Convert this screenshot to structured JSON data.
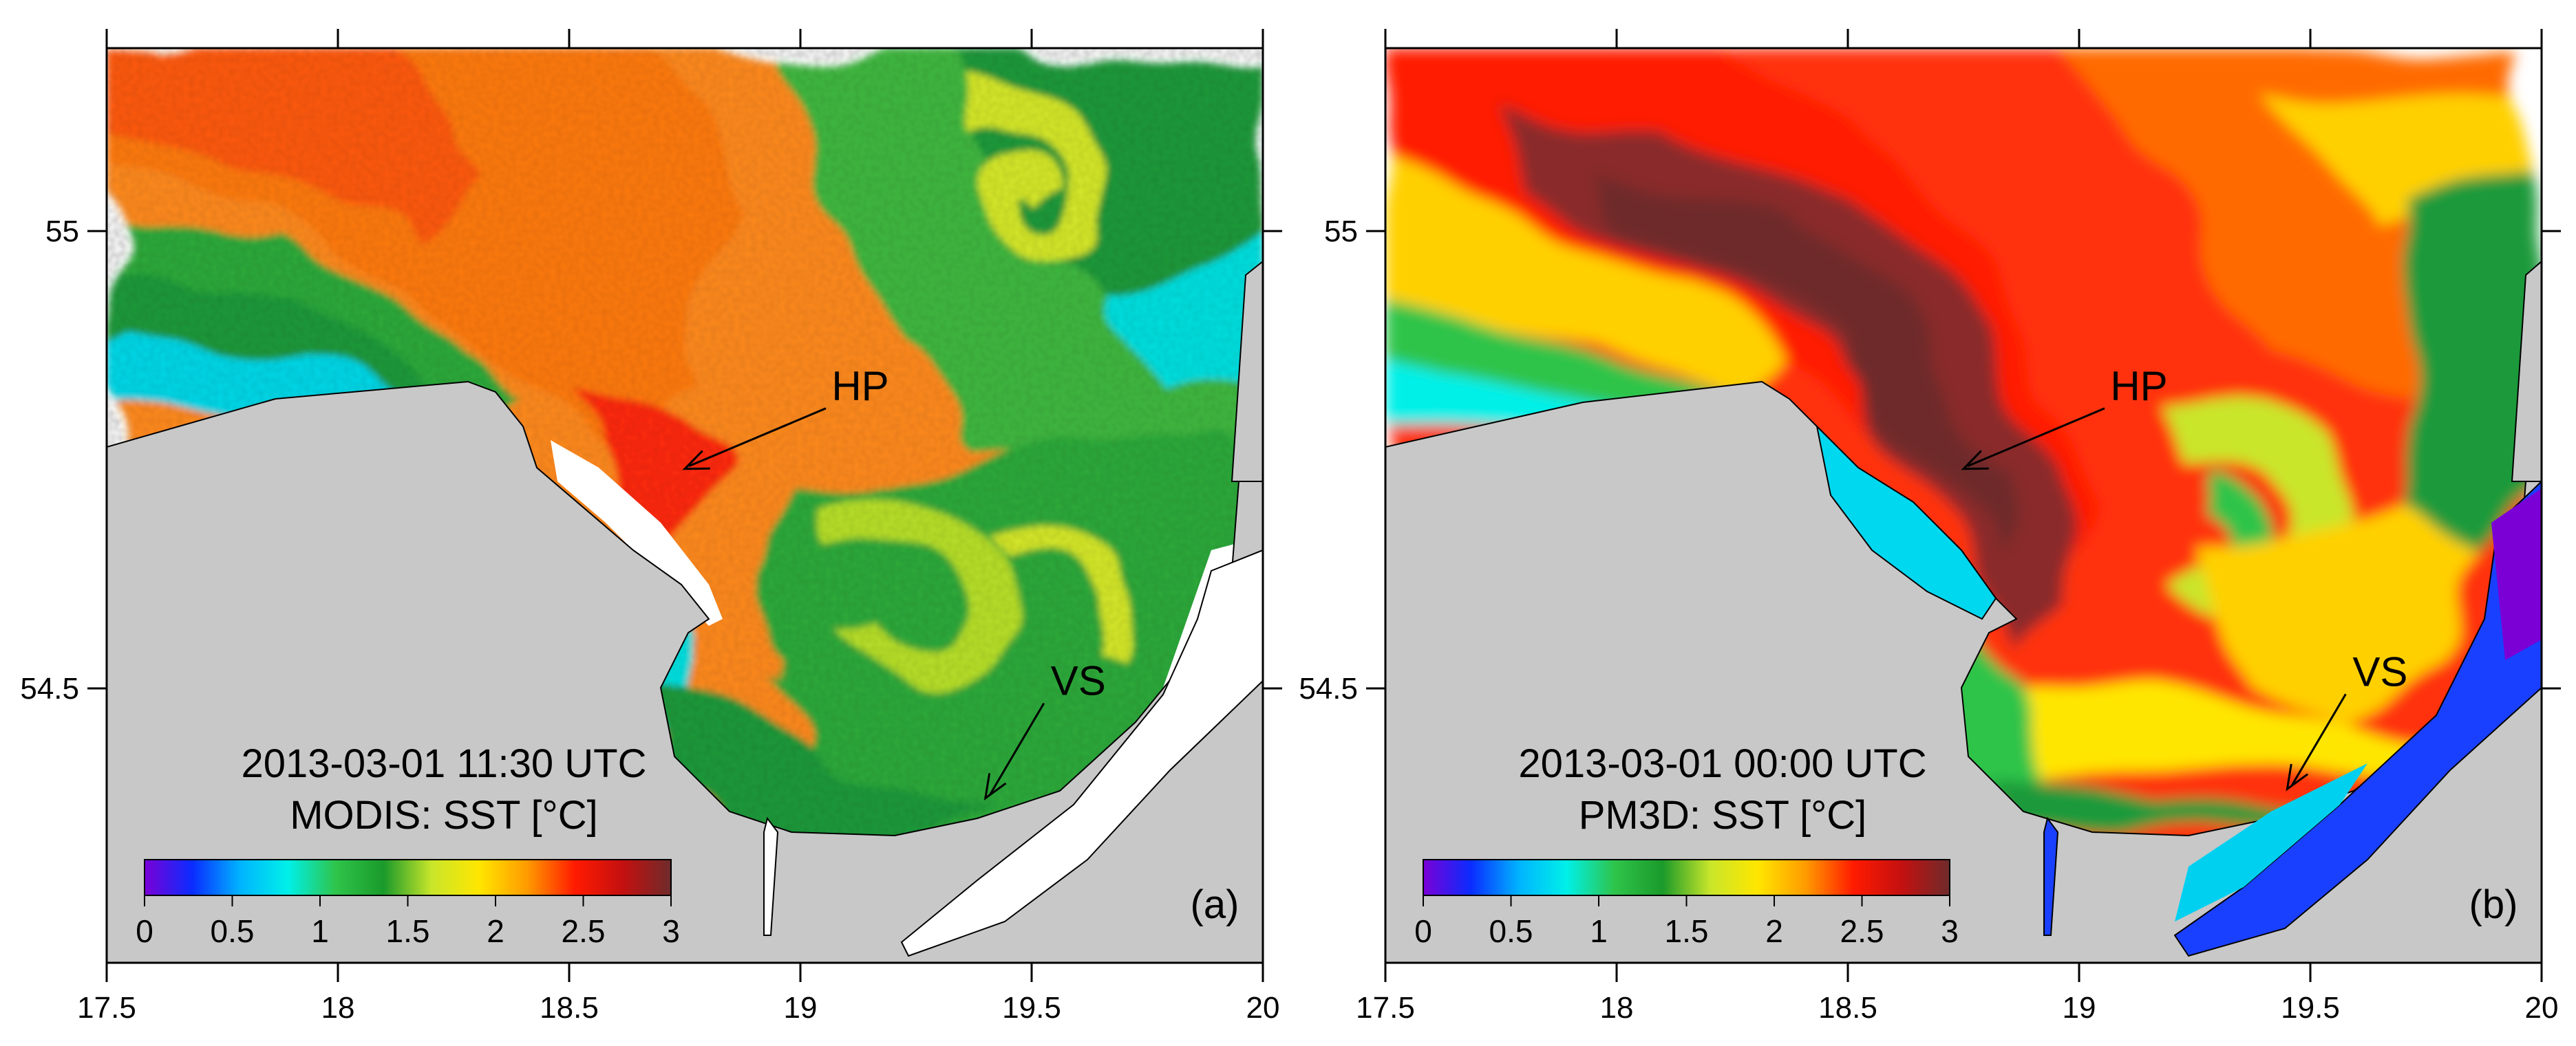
{
  "panels": [
    {
      "id": "a",
      "letter": "(a)",
      "timestamp": "2013-03-01 11:30 UTC",
      "product": "MODIS: SST [°C]",
      "annotations": [
        {
          "label": "HP",
          "lon": 18.75,
          "lat": 54.74
        },
        {
          "label": "VS",
          "lon": 19.4,
          "lat": 54.38
        }
      ]
    },
    {
      "id": "b",
      "letter": "(b)",
      "timestamp": "2013-03-01 00:00 UTC",
      "product": "PM3D: SST [°C]",
      "annotations": [
        {
          "label": "HP",
          "lon": 18.75,
          "lat": 54.74
        },
        {
          "label": "VS",
          "lon": 19.45,
          "lat": 54.39
        }
      ]
    }
  ],
  "axes": {
    "x_ticks": [
      "17.5",
      "18",
      "18.5",
      "19",
      "19.5",
      "20"
    ],
    "y_ticks": [
      "55",
      "54.5"
    ],
    "xlim": [
      17.5,
      20
    ],
    "ylim": [
      54.2,
      55.2
    ]
  },
  "colorbar": {
    "min": 0,
    "max": 3,
    "ticks": [
      "0",
      "0.5",
      "1",
      "1.5",
      "2",
      "2.5",
      "3"
    ],
    "colors": [
      "#7a00d6",
      "#0a2cff",
      "#00b4ff",
      "#00f0e8",
      "#2fc44a",
      "#1a9a2a",
      "#c9e62a",
      "#ffe600",
      "#ff9a00",
      "#ff1a00",
      "#c41010",
      "#6e2b2b"
    ]
  },
  "land_color": "#c8c8c8",
  "missing_color": "#ffffff"
}
